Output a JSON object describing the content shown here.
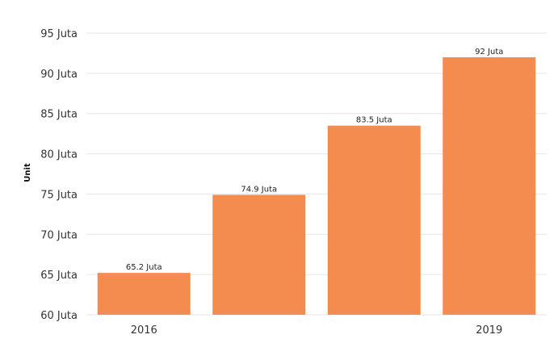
{
  "chart_data": {
    "type": "bar",
    "title": "",
    "xlabel": "",
    "ylabel": "Unit",
    "categories": [
      "2016",
      "",
      "",
      "2019"
    ],
    "values": [
      65.2,
      74.9,
      83.5,
      92
    ],
    "data_labels": [
      "65.2 Juta",
      "74.9 Juta",
      "83.5 Juta",
      "92 Juta"
    ],
    "ylim": [
      60,
      95
    ],
    "yticks": [
      60,
      65,
      70,
      75,
      80,
      85,
      90,
      95
    ],
    "ytick_labels": [
      "60 Juta",
      "65 Juta",
      "70 Juta",
      "75 Juta",
      "80 Juta",
      "85 Juta",
      "90 Juta",
      "95 Juta"
    ],
    "grid": true,
    "legend": "none",
    "bar_color": "#F58C4F"
  }
}
